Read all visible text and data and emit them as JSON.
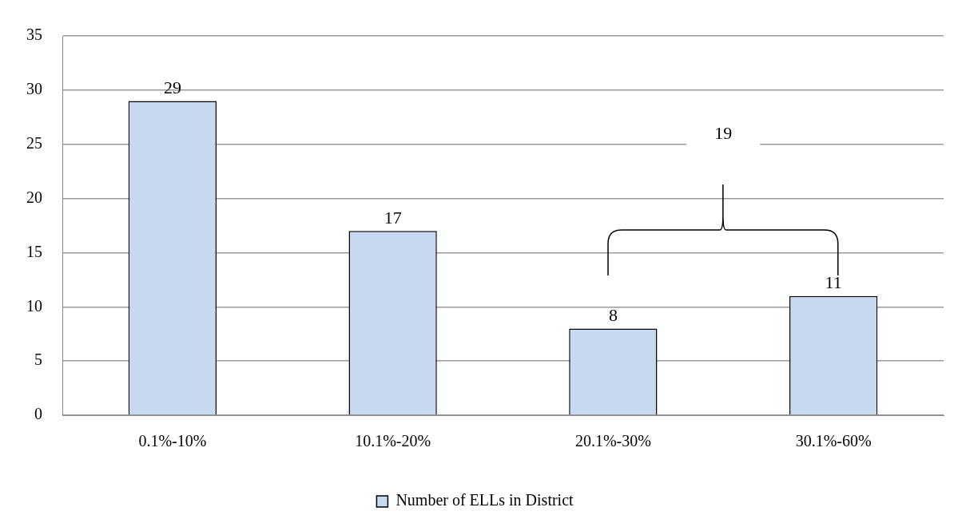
{
  "chart_data": {
    "type": "bar",
    "categories": [
      "0.1%-10%",
      "10.1%-20%",
      "20.1%-30%",
      "30.1%-60%"
    ],
    "series": [
      {
        "name": "Number of ELLs in District",
        "color": "#c6d9f1",
        "values": [
          29,
          17,
          8,
          11
        ]
      }
    ],
    "ylim": [
      0,
      35
    ],
    "yticks": [
      0,
      5,
      10,
      15,
      20,
      25,
      30,
      35
    ],
    "grid": "y",
    "legend": "bottom",
    "data_labels": true,
    "annotations": [
      "19"
    ]
  }
}
